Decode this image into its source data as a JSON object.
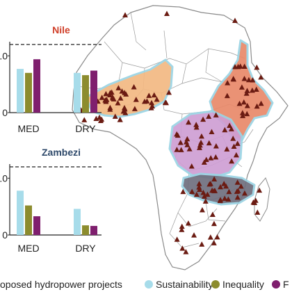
{
  "colors": {
    "sustainability": "#a7dcea",
    "inequality": "#8c8c2e",
    "third": "#7f1f6e",
    "nile_title": "#d0402a",
    "zambezi_title": "#2f4a6b",
    "marker": "#6b1b12",
    "land": "#ffffff",
    "border": "#8a8a8a"
  },
  "legend": {
    "projects_label": "oposed hydropower projects",
    "sustainability_label": "Sustainability",
    "inequality_label": "Inequality",
    "third_label": "F"
  },
  "chart_data": [
    {
      "type": "bar",
      "title": "Nile",
      "categories": [
        "MED",
        "DRY"
      ],
      "ytick_labels": [
        "0",
        "1.0"
      ],
      "ylim": [
        0,
        1.2
      ],
      "reference_line": 1.2,
      "series": [
        {
          "name": "Sustainability",
          "values": [
            0.77,
            0.7
          ]
        },
        {
          "name": "Inequality",
          "values": [
            0.7,
            0.66
          ]
        },
        {
          "name": "",
          "values": [
            0.94,
            0.74
          ]
        }
      ]
    },
    {
      "type": "bar",
      "title": "Zambezi",
      "categories": [
        "MED",
        "DRY"
      ],
      "ytick_labels": [
        "0",
        "1.0"
      ],
      "ylim": [
        0,
        1.2
      ],
      "reference_line": 1.2,
      "series": [
        {
          "name": "Sustainability",
          "values": [
            0.78,
            0.46
          ]
        },
        {
          "name": "Inequality",
          "values": [
            0.52,
            0.17
          ]
        },
        {
          "name": "",
          "values": [
            0.33,
            0.16
          ]
        }
      ]
    }
  ],
  "map": {
    "layers": [
      "Africa country borders",
      "Nile basin",
      "Niger basin",
      "Congo basin",
      "Zambezi basin",
      "Hydropower project markers"
    ],
    "basins": [
      {
        "name": "Nile",
        "color": "#e9896a"
      },
      {
        "name": "Niger",
        "color": "#f3b983"
      },
      {
        "name": "Congo",
        "color": "#cf9fd4"
      },
      {
        "name": "Zambezi",
        "color": "#6f6f7e"
      }
    ],
    "marker_icon": "triangle-marker-icon"
  }
}
